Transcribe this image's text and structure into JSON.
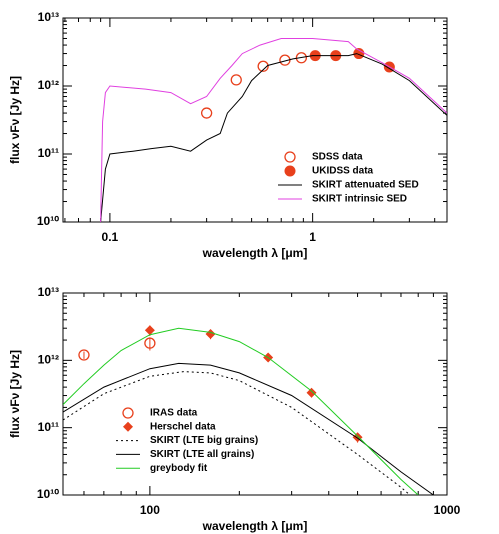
{
  "chart_data": [
    {
      "type": "sed",
      "xlabel": "wavelength λ [μm]",
      "ylabel": "flux νFν [Jy Hz]",
      "xscale": "log",
      "yscale": "log",
      "xlim": [
        0.0587,
        4.6
      ],
      "ylim": [
        10000000000.0,
        10000000000000.0
      ],
      "xticks": [
        0.1,
        1
      ],
      "yticks": [
        {
          "value": 10000000000.0,
          "label": "10¹⁰"
        },
        {
          "value": 100000000000.0,
          "label": "10¹¹"
        },
        {
          "value": 1000000000000.0,
          "label": "10¹²"
        },
        {
          "value": 10000000000000.0,
          "label": "10¹³"
        }
      ],
      "legend": "lower right",
      "series": [
        {
          "name": "SDSS data",
          "kind": "open-circle",
          "color": "#e8401c",
          "x": [
            0.3,
            0.42,
            0.57,
            0.73,
            0.88
          ],
          "values": [
            400000000000.0,
            1230000000000.0,
            1950000000000.0,
            2400000000000.0,
            2600000000000.0
          ]
        },
        {
          "name": "UKIDSS data",
          "kind": "filled-circle",
          "color": "#e8401c",
          "x": [
            1.03,
            1.3,
            1.69,
            2.39
          ],
          "values": [
            2800000000000.0,
            2800000000000.0,
            3000000000000.0,
            1900000000000.0
          ]
        },
        {
          "name": "SKIRT attenuated SED",
          "kind": "line",
          "color": "#000000",
          "x": [
            0.09,
            0.095,
            0.1,
            0.13,
            0.16,
            0.2,
            0.25,
            0.3,
            0.35,
            0.38,
            0.45,
            0.5,
            0.6,
            0.8,
            1.0,
            1.5,
            1.65,
            2.2,
            3.0,
            4.6
          ],
          "values": [
            10000000000.0,
            60000000000.0,
            100000000000.0,
            110000000000.0,
            120000000000.0,
            130000000000.0,
            110000000000.0,
            160000000000.0,
            200000000000.0,
            400000000000.0,
            700000000000.0,
            1200000000000.0,
            2000000000000.0,
            2500000000000.0,
            2800000000000.0,
            2800000000000.0,
            3000000000000.0,
            2100000000000.0,
            1200000000000.0,
            370000000000.0
          ]
        },
        {
          "name": "SKIRT intrinsic SED",
          "kind": "line",
          "color": "#e040e0",
          "x": [
            0.09,
            0.092,
            0.095,
            0.1,
            0.15,
            0.2,
            0.25,
            0.3,
            0.35,
            0.4,
            0.45,
            0.55,
            0.7,
            1.0,
            1.5,
            1.65,
            2.2,
            3.0,
            4.6
          ],
          "values": [
            10000000000.0,
            300000000000.0,
            800000000000.0,
            1000000000000.0,
            900000000000.0,
            800000000000.0,
            550000000000.0,
            700000000000.0,
            1300000000000.0,
            2000000000000.0,
            3000000000000.0,
            4000000000000.0,
            5000000000000.0,
            5000000000000.0,
            4500000000000.0,
            3500000000000.0,
            2200000000000.0,
            1300000000000.0,
            400000000000.0
          ]
        }
      ]
    },
    {
      "type": "sed",
      "xlabel": "wavelength λ [μm]",
      "ylabel": "flux νFν [Jy Hz]",
      "xscale": "log",
      "yscale": "log",
      "xlim": [
        51,
        1000
      ],
      "ylim": [
        10000000000.0,
        10000000000000.0
      ],
      "xticks": [
        100,
        1000
      ],
      "yticks": [
        {
          "value": 10000000000.0,
          "label": "10¹⁰"
        },
        {
          "value": 100000000000.0,
          "label": "10¹¹"
        },
        {
          "value": 1000000000000.0,
          "label": "10¹²"
        },
        {
          "value": 10000000000000.0,
          "label": "10¹³"
        }
      ],
      "legend": "lower left",
      "series": [
        {
          "name": "IRAS data",
          "kind": "open-circle",
          "color": "#e8401c",
          "x": [
            60,
            100
          ],
          "values": [
            1200000000000.0,
            1800000000000.0
          ],
          "errors": [
            150000000000.0,
            400000000000.0
          ]
        },
        {
          "name": "Herschel data",
          "kind": "diamond",
          "color": "#e8401c",
          "x": [
            100,
            160,
            250,
            350,
            500
          ],
          "values": [
            2800000000000.0,
            2460000000000.0,
            1100000000000.0,
            330000000000.0,
            72000000000.0
          ],
          "errors": [
            500000000000.0,
            400000000000.0,
            150000000000.0,
            50000000000.0,
            12000000000.0
          ]
        },
        {
          "name": "SKIRT (LTE big grains)",
          "kind": "line",
          "dash": "dotted",
          "color": "#000000",
          "x": [
            51,
            70,
            100,
            130,
            160,
            200,
            300,
            500,
            700,
            750
          ],
          "values": [
            130000000000.0,
            320000000000.0,
            580000000000.0,
            680000000000.0,
            650000000000.0,
            500000000000.0,
            200000000000.0,
            40000000000.0,
            13000000000.0,
            10000000000.0
          ]
        },
        {
          "name": "SKIRT (LTE all grains)",
          "kind": "line",
          "color": "#000000",
          "x": [
            51,
            70,
            100,
            125,
            160,
            200,
            300,
            500,
            700,
            900
          ],
          "values": [
            170000000000.0,
            400000000000.0,
            750000000000.0,
            900000000000.0,
            850000000000.0,
            650000000000.0,
            300000000000.0,
            70000000000.0,
            22000000000.0,
            10000000000.0
          ]
        },
        {
          "name": "greybody fit",
          "kind": "line",
          "color": "#22cc22",
          "x": [
            51,
            60,
            70,
            80,
            100,
            125,
            160,
            200,
            250,
            350,
            500,
            700,
            800
          ],
          "values": [
            220000000000.0,
            450000000000.0,
            850000000000.0,
            1400000000000.0,
            2400000000000.0,
            3000000000000.0,
            2600000000000.0,
            1900000000000.0,
            1100000000000.0,
            350000000000.0,
            75000000000.0,
            17000000000.0,
            10000000000.0
          ]
        }
      ]
    }
  ]
}
